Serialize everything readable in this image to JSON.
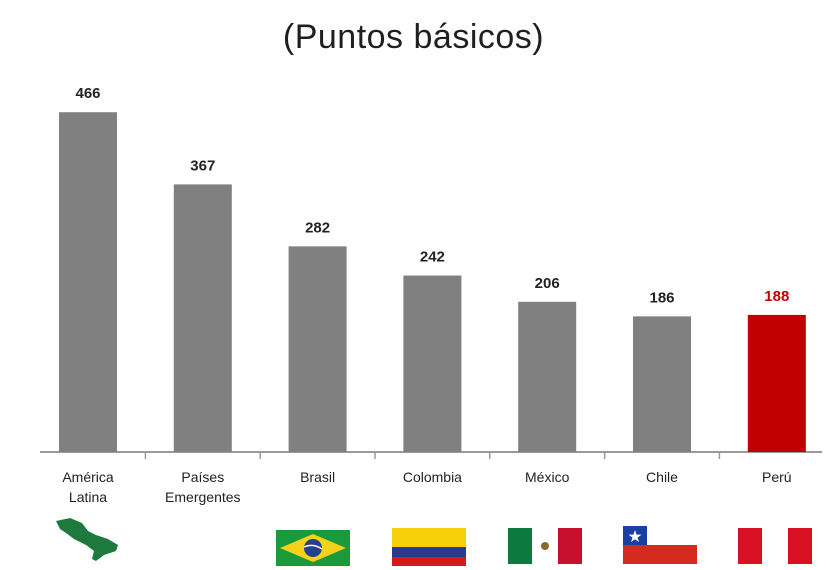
{
  "chart_data": {
    "type": "bar",
    "title": "(Puntos básicos)",
    "categories": [
      "América Latina",
      "Países Emergentes",
      "Brasil",
      "Colombia",
      "México",
      "Chile",
      "Perú"
    ],
    "category_lines": [
      [
        "América",
        "Latina"
      ],
      [
        "Países",
        "Emergentes"
      ],
      [
        "Brasil"
      ],
      [
        "Colombia"
      ],
      [
        "México"
      ],
      [
        "Chile"
      ],
      [
        "Perú"
      ]
    ],
    "values": [
      466,
      367,
      282,
      242,
      206,
      186,
      188
    ],
    "value_labels": [
      "466",
      "367",
      "282",
      "242",
      "206",
      "186",
      "188"
    ],
    "ylim": [
      0,
      480
    ],
    "grid": false,
    "bar_colors": [
      "#808080",
      "#808080",
      "#808080",
      "#808080",
      "#808080",
      "#808080",
      "#c00000"
    ],
    "label_colors": [
      "#222222",
      "#222222",
      "#222222",
      "#222222",
      "#222222",
      "#222222",
      "#c00000"
    ]
  },
  "flags": [
    {
      "name": "latin-america-map-icon",
      "colors": [
        "#1e7a3c"
      ]
    },
    {
      "name": "brazil-flag-icon",
      "colors": [
        "#1a9a3a",
        "#f4d21c",
        "#27408b"
      ]
    },
    {
      "name": "colombia-flag-icon",
      "colors": [
        "#f6d10b",
        "#2b3a8e",
        "#d01c1f"
      ]
    },
    {
      "name": "mexico-flag-icon",
      "colors": [
        "#0b7a3e",
        "#ffffff",
        "#c8102e"
      ]
    },
    {
      "name": "chile-flag-icon",
      "colors": [
        "#1b3ea6",
        "#ffffff",
        "#d52b1e"
      ]
    },
    {
      "name": "peru-flag-icon",
      "colors": [
        "#d91023",
        "#ffffff",
        "#d91023"
      ]
    }
  ]
}
